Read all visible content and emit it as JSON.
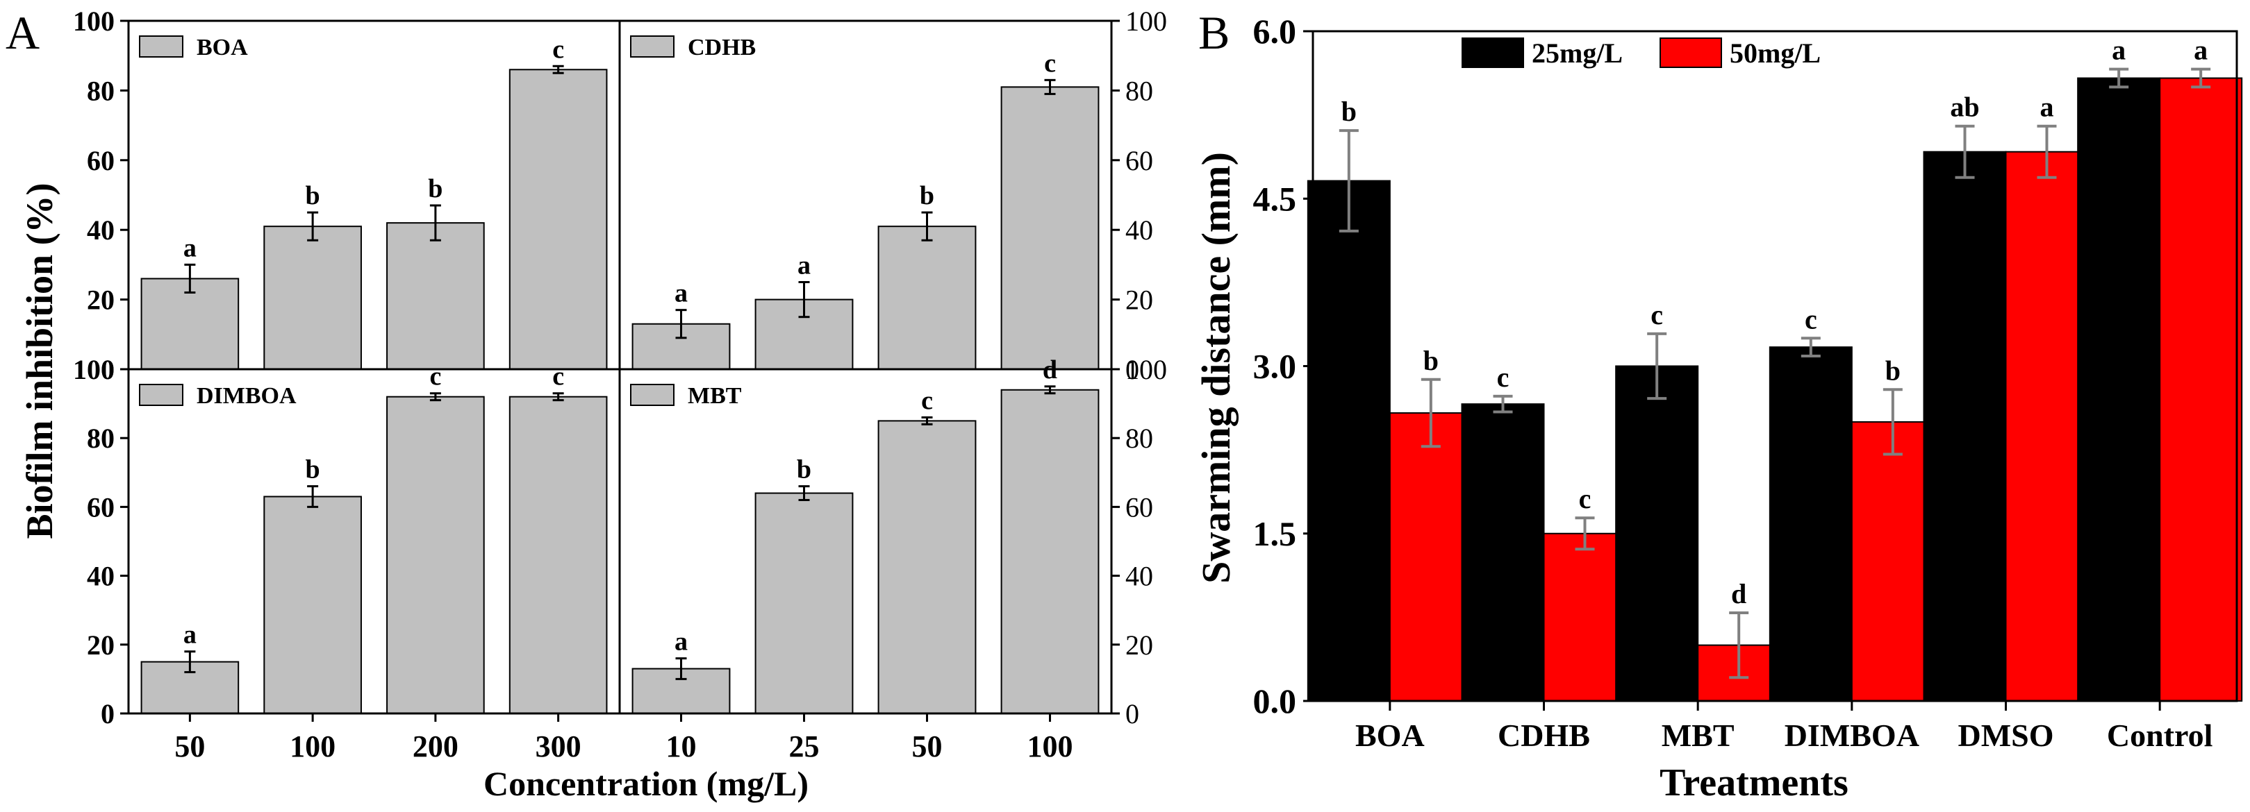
{
  "chart_data": [
    {
      "panel_label": "A",
      "type": "bar",
      "ylabel": "Biofilm inhibition (%)",
      "xlabel": "Concentration (mg/L)",
      "ylim": [
        0,
        100
      ],
      "yticks": [
        0,
        20,
        40,
        60,
        80,
        100
      ],
      "ytick_labels": [
        "0",
        "20",
        "40",
        "60",
        "80",
        "100"
      ],
      "bar_color": "#c0c0c0",
      "subplots": [
        {
          "title": "BOA",
          "categories": [
            "50",
            "100",
            "200",
            "300"
          ],
          "values": [
            26,
            41,
            42,
            86
          ],
          "errors": [
            4,
            4,
            5,
            1
          ],
          "letters": [
            "a",
            "b",
            "b",
            "c"
          ]
        },
        {
          "title": "CDHB",
          "categories": [
            "10",
            "25",
            "50",
            "100"
          ],
          "values": [
            13,
            20,
            41,
            81
          ],
          "errors": [
            4,
            5,
            4,
            2
          ],
          "letters": [
            "a",
            "a",
            "b",
            "c"
          ]
        },
        {
          "title": "DIMBOA",
          "categories": [
            "50",
            "100",
            "200",
            "300"
          ],
          "values": [
            15,
            63,
            92,
            92
          ],
          "errors": [
            3,
            3,
            1,
            1
          ],
          "letters": [
            "a",
            "b",
            "c",
            "c"
          ]
        },
        {
          "title": "MBT",
          "categories": [
            "10",
            "25",
            "50",
            "100"
          ],
          "values": [
            13,
            64,
            85,
            94
          ],
          "errors": [
            3,
            2,
            1,
            1
          ],
          "letters": [
            "a",
            "b",
            "c",
            "d"
          ]
        }
      ]
    },
    {
      "panel_label": "B",
      "type": "bar",
      "ylabel": "Swarming distance (mm)",
      "xlabel": "Treatments",
      "ylim": [
        0,
        6
      ],
      "yticks": [
        0,
        1.5,
        3,
        4.5,
        6
      ],
      "ytick_labels": [
        "0.0",
        "1.5",
        "3.0",
        "4.5",
        "6.0"
      ],
      "categories": [
        "BOA",
        "CDHB",
        "MBT",
        "DIMBOA",
        "DMSO",
        "Control"
      ],
      "series": [
        {
          "name": "25mg/L",
          "color": "#000000",
          "values": [
            4.66,
            2.66,
            3.0,
            3.17,
            4.92,
            5.58
          ],
          "errors": [
            0.45,
            0.07,
            0.29,
            0.08,
            0.23,
            0.08
          ],
          "letters": [
            "b",
            "c",
            "c",
            "c",
            "ab",
            "a"
          ]
        },
        {
          "name": "50mg/L",
          "color": "#ff0000",
          "values": [
            2.58,
            1.5,
            0.5,
            2.5,
            4.92,
            5.58
          ],
          "errors": [
            0.3,
            0.14,
            0.29,
            0.29,
            0.23,
            0.08
          ],
          "letters": [
            "b",
            "c",
            "d",
            "b",
            "a",
            "a"
          ]
        }
      ]
    }
  ]
}
